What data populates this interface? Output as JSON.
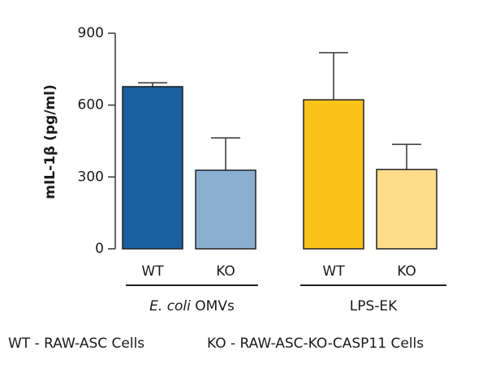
{
  "chart_data": {
    "type": "bar",
    "y_label": "mIL-1β (pg/ml)",
    "categories": [
      "WT",
      "KO",
      "WT",
      "KO"
    ],
    "values": [
      677,
      328,
      622,
      331
    ],
    "errors": [
      16,
      135,
      197,
      105
    ],
    "colors": [
      "#1a5fa0",
      "#8aafd0",
      "#fbc31a",
      "#fedd8a"
    ],
    "groups": [
      {
        "italic": "E. coli",
        "label": "OMVs"
      },
      {
        "label": "LPS-EK"
      }
    ],
    "ylim": [
      0,
      900
    ],
    "yticks": [
      0,
      300,
      600,
      900
    ],
    "notes": [
      "WT - RAW-ASC Cells",
      "KO - RAW-ASC-KO-CASP11 Cells"
    ]
  }
}
